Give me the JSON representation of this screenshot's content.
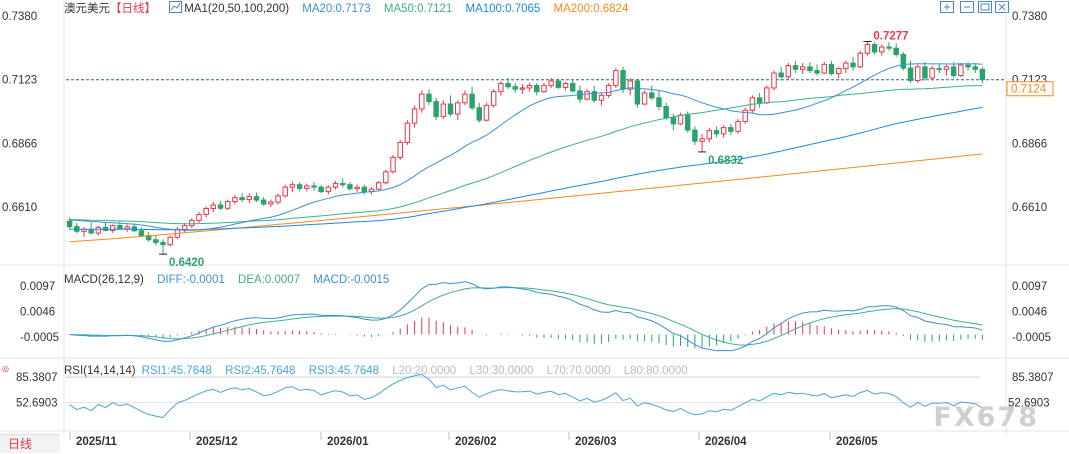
{
  "header": {
    "symbol": "澳元美元",
    "period": "【日线】",
    "ma_label": "MA1(20,50,100,200)",
    "ma20": "MA20:0.7173",
    "ma50": "MA50:0.7121",
    "ma100": "MA100:0.7065",
    "ma200": "MA200:0.6824"
  },
  "macd_header": {
    "label": "MACD(26,12,9)",
    "diff": "DIFF:-0.0001",
    "dea": "DEA:0.0007",
    "macd": "MACD:-0.0015"
  },
  "rsi_header": {
    "label": "RSI(14,14,14)",
    "rsi1": "RSI1:45.7648",
    "rsi2": "RSI2:45.7648",
    "rsi3": "RSI3:45.7648",
    "l20": "L20:20.0000",
    "l30": "L30:30.0000",
    "l70": "L70:70.0000",
    "l80": "L80:80.0000"
  },
  "period_button": "日线",
  "watermark": "FX678",
  "colors": {
    "up": "#e8394b",
    "down": "#2aa36b",
    "ma20": "#3b8fd9",
    "ma50": "#3fb08a",
    "ma100": "#1e88e5",
    "ma200": "#f5891f",
    "rsi": "#49a6dd"
  },
  "icons": [
    "zoom-in-icon",
    "zoom-out-icon",
    "fullscreen-icon",
    "close-icon"
  ],
  "chart_data": {
    "type": "candlestick",
    "price_axis": {
      "ticks": [
        "0.7380",
        "0.7123",
        "0.6866",
        "0.6610"
      ],
      "last_price": "0.7124",
      "last_price_left": "0.7123",
      "ylim": [
        0.642,
        0.738
      ]
    },
    "annotations": {
      "high": "0.7277",
      "low": "0.6420",
      "swing_low": "0.6832"
    },
    "x_labels": [
      "2025/11",
      "2025/12",
      "2026/01",
      "2026/02",
      "2026/03",
      "2026/04",
      "2026/05"
    ],
    "ohlc": [
      [
        0.6553,
        0.6568,
        0.652,
        0.6531
      ],
      [
        0.6531,
        0.6545,
        0.6504,
        0.6512
      ],
      [
        0.6512,
        0.653,
        0.649,
        0.652
      ],
      [
        0.652,
        0.6548,
        0.65,
        0.6505
      ],
      [
        0.6505,
        0.6535,
        0.6495,
        0.6528
      ],
      [
        0.6528,
        0.6548,
        0.6512,
        0.6515
      ],
      [
        0.6515,
        0.654,
        0.6505,
        0.6535
      ],
      [
        0.6535,
        0.6552,
        0.6518,
        0.6522
      ],
      [
        0.6522,
        0.654,
        0.6508,
        0.653
      ],
      [
        0.653,
        0.6545,
        0.651,
        0.6514
      ],
      [
        0.6514,
        0.6528,
        0.6488,
        0.6495
      ],
      [
        0.6495,
        0.651,
        0.647,
        0.6478
      ],
      [
        0.6478,
        0.6495,
        0.6456,
        0.6467
      ],
      [
        0.6467,
        0.648,
        0.642,
        0.6458
      ],
      [
        0.6458,
        0.6495,
        0.645,
        0.6488
      ],
      [
        0.6488,
        0.653,
        0.648,
        0.652
      ],
      [
        0.652,
        0.6545,
        0.6508,
        0.6535
      ],
      [
        0.6535,
        0.6565,
        0.6525,
        0.6556
      ],
      [
        0.6556,
        0.659,
        0.6545,
        0.658
      ],
      [
        0.658,
        0.6612,
        0.6568,
        0.6604
      ],
      [
        0.6604,
        0.663,
        0.659,
        0.6618
      ],
      [
        0.6618,
        0.6635,
        0.6598,
        0.6605
      ],
      [
        0.6605,
        0.664,
        0.6598,
        0.6632
      ],
      [
        0.6632,
        0.666,
        0.662,
        0.6648
      ],
      [
        0.6648,
        0.6665,
        0.663,
        0.664
      ],
      [
        0.664,
        0.6665,
        0.6625,
        0.6652
      ],
      [
        0.6652,
        0.6668,
        0.663,
        0.6638
      ],
      [
        0.6638,
        0.665,
        0.6615,
        0.6622
      ],
      [
        0.6622,
        0.664,
        0.661,
        0.663
      ],
      [
        0.663,
        0.6665,
        0.662,
        0.6655
      ],
      [
        0.6655,
        0.67,
        0.6648,
        0.669
      ],
      [
        0.669,
        0.6712,
        0.667,
        0.67
      ],
      [
        0.67,
        0.671,
        0.6675,
        0.6685
      ],
      [
        0.6685,
        0.6705,
        0.6672,
        0.6695
      ],
      [
        0.6695,
        0.6712,
        0.6675,
        0.669
      ],
      [
        0.669,
        0.67,
        0.6665,
        0.6672
      ],
      [
        0.6672,
        0.6698,
        0.666,
        0.669
      ],
      [
        0.669,
        0.6715,
        0.668,
        0.6705
      ],
      [
        0.6705,
        0.6725,
        0.669,
        0.67
      ],
      [
        0.67,
        0.671,
        0.6675,
        0.6684
      ],
      [
        0.6684,
        0.67,
        0.667,
        0.669
      ],
      [
        0.669,
        0.67,
        0.666,
        0.6672
      ],
      [
        0.6672,
        0.669,
        0.666,
        0.6682
      ],
      [
        0.6682,
        0.6715,
        0.6675,
        0.6708
      ],
      [
        0.6708,
        0.676,
        0.67,
        0.6752
      ],
      [
        0.6752,
        0.682,
        0.6745,
        0.681
      ],
      [
        0.681,
        0.688,
        0.68,
        0.687
      ],
      [
        0.687,
        0.696,
        0.686,
        0.6948
      ],
      [
        0.6948,
        0.702,
        0.693,
        0.7005
      ],
      [
        0.7005,
        0.708,
        0.699,
        0.7065
      ],
      [
        0.7065,
        0.7085,
        0.702,
        0.7035
      ],
      [
        0.7035,
        0.705,
        0.696,
        0.6975
      ],
      [
        0.6975,
        0.704,
        0.6965,
        0.7025
      ],
      [
        0.7025,
        0.706,
        0.6975,
        0.6985
      ],
      [
        0.6985,
        0.704,
        0.696,
        0.703
      ],
      [
        0.703,
        0.708,
        0.702,
        0.7065
      ],
      [
        0.7065,
        0.7095,
        0.7,
        0.701
      ],
      [
        0.701,
        0.703,
        0.695,
        0.696
      ],
      [
        0.696,
        0.703,
        0.6955,
        0.702
      ],
      [
        0.702,
        0.7085,
        0.701,
        0.7075
      ],
      [
        0.7075,
        0.7118,
        0.706,
        0.7108
      ],
      [
        0.7108,
        0.713,
        0.7085,
        0.7095
      ],
      [
        0.7095,
        0.711,
        0.707,
        0.7085
      ],
      [
        0.7085,
        0.7105,
        0.7065,
        0.709
      ],
      [
        0.709,
        0.711,
        0.7075,
        0.71
      ],
      [
        0.71,
        0.711,
        0.706,
        0.7075
      ],
      [
        0.7075,
        0.711,
        0.707,
        0.71
      ],
      [
        0.71,
        0.713,
        0.709,
        0.7118
      ],
      [
        0.7118,
        0.7128,
        0.7085,
        0.7092
      ],
      [
        0.7092,
        0.7115,
        0.708,
        0.7108
      ],
      [
        0.7108,
        0.7125,
        0.707,
        0.7078
      ],
      [
        0.7078,
        0.71,
        0.703,
        0.7045
      ],
      [
        0.7045,
        0.7085,
        0.704,
        0.7075
      ],
      [
        0.7075,
        0.71,
        0.703,
        0.704
      ],
      [
        0.704,
        0.707,
        0.702,
        0.706
      ],
      [
        0.706,
        0.711,
        0.705,
        0.71
      ],
      [
        0.71,
        0.717,
        0.709,
        0.716
      ],
      [
        0.716,
        0.7175,
        0.707,
        0.7085
      ],
      [
        0.7085,
        0.713,
        0.706,
        0.7118
      ],
      [
        0.7118,
        0.7125,
        0.701,
        0.7025
      ],
      [
        0.7025,
        0.708,
        0.702,
        0.707
      ],
      [
        0.707,
        0.71,
        0.704,
        0.705
      ],
      [
        0.705,
        0.708,
        0.7,
        0.7015
      ],
      [
        0.7015,
        0.703,
        0.696,
        0.697
      ],
      [
        0.697,
        0.6985,
        0.692,
        0.6945
      ],
      [
        0.6945,
        0.699,
        0.694,
        0.698
      ],
      [
        0.698,
        0.6995,
        0.691,
        0.692
      ],
      [
        0.692,
        0.6935,
        0.686,
        0.6875
      ],
      [
        0.6875,
        0.6905,
        0.6832,
        0.6885
      ],
      [
        0.6885,
        0.693,
        0.687,
        0.6918
      ],
      [
        0.6918,
        0.6935,
        0.689,
        0.6905
      ],
      [
        0.6905,
        0.694,
        0.689,
        0.693
      ],
      [
        0.693,
        0.6945,
        0.69,
        0.6915
      ],
      [
        0.6915,
        0.6965,
        0.6905,
        0.6955
      ],
      [
        0.6955,
        0.701,
        0.6945,
        0.7
      ],
      [
        0.7,
        0.706,
        0.699,
        0.705
      ],
      [
        0.705,
        0.707,
        0.701,
        0.703
      ],
      [
        0.703,
        0.71,
        0.7025,
        0.709
      ],
      [
        0.709,
        0.716,
        0.708,
        0.715
      ],
      [
        0.715,
        0.7175,
        0.712,
        0.7135
      ],
      [
        0.7135,
        0.719,
        0.7125,
        0.718
      ],
      [
        0.718,
        0.72,
        0.715,
        0.7165
      ],
      [
        0.7165,
        0.719,
        0.7145,
        0.7175
      ],
      [
        0.7175,
        0.7195,
        0.715,
        0.716
      ],
      [
        0.716,
        0.7185,
        0.714,
        0.715
      ],
      [
        0.715,
        0.7195,
        0.7145,
        0.7185
      ],
      [
        0.7185,
        0.72,
        0.714,
        0.7148
      ],
      [
        0.7148,
        0.7175,
        0.713,
        0.7168
      ],
      [
        0.7168,
        0.72,
        0.715,
        0.719
      ],
      [
        0.719,
        0.7215,
        0.716,
        0.7175
      ],
      [
        0.7175,
        0.724,
        0.717,
        0.723
      ],
      [
        0.723,
        0.7277,
        0.722,
        0.7265
      ],
      [
        0.7265,
        0.7275,
        0.7225,
        0.7235
      ],
      [
        0.7235,
        0.7265,
        0.722,
        0.7255
      ],
      [
        0.7255,
        0.7275,
        0.724,
        0.725
      ],
      [
        0.725,
        0.727,
        0.7215,
        0.7225
      ],
      [
        0.7225,
        0.7235,
        0.716,
        0.717
      ],
      [
        0.717,
        0.72,
        0.711,
        0.712
      ],
      [
        0.712,
        0.7185,
        0.711,
        0.7175
      ],
      [
        0.7175,
        0.7195,
        0.712,
        0.713
      ],
      [
        0.713,
        0.718,
        0.712,
        0.7168
      ],
      [
        0.7168,
        0.719,
        0.715,
        0.7165
      ],
      [
        0.7165,
        0.7185,
        0.714,
        0.7175
      ],
      [
        0.7175,
        0.7195,
        0.713,
        0.714
      ],
      [
        0.714,
        0.719,
        0.7135,
        0.7182
      ],
      [
        0.7182,
        0.7195,
        0.716,
        0.7175
      ],
      [
        0.7175,
        0.719,
        0.715,
        0.7165
      ],
      [
        0.7165,
        0.7175,
        0.711,
        0.7124
      ]
    ],
    "ma_end_values": {
      "MA20": 0.7173,
      "MA50": 0.7121,
      "MA100": 0.7065,
      "MA200": 0.6824
    },
    "macd_axis": {
      "ticks": [
        "0.0097",
        "0.0046",
        "-0.0005"
      ],
      "ylim": [
        -0.0035,
        0.0105
      ]
    },
    "rsi_axis": {
      "ticks": [
        "85.3807",
        "52.6903"
      ]
    }
  }
}
